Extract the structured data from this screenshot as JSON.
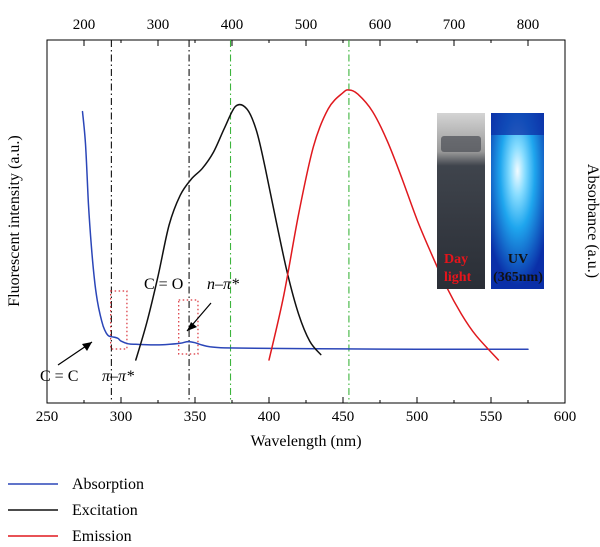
{
  "chart_data": {
    "type": "line",
    "xlabel": "Wavelength (nm)",
    "ylabel": "Fluorescent intensity (a.u.)",
    "y2label": "Absorbance (a.u.)",
    "bottom_axis": {
      "label": "Wavelength (nm)",
      "xlim": [
        250,
        600
      ],
      "ticks": [
        "250",
        "300",
        "350",
        "400",
        "450",
        "500",
        "550",
        "600"
      ]
    },
    "top_axis": {
      "xlim": [
        150,
        850
      ],
      "ticks": [
        "200",
        "300",
        "400",
        "500",
        "600",
        "700",
        "800"
      ]
    },
    "ylim": [
      0,
      1
    ],
    "grid": false,
    "legend_position": "bottom-left",
    "series": [
      {
        "name": "Absorption",
        "color": "#2b46b8",
        "axis": "bottom",
        "x": [
          274,
          276,
          278,
          280,
          282,
          284,
          286,
          288,
          290,
          292,
          295,
          298,
          300,
          305,
          310,
          320,
          330,
          340,
          345,
          350,
          355,
          360,
          370,
          400,
          450,
          500,
          550,
          575
        ],
        "y": [
          0.92,
          0.8,
          0.58,
          0.42,
          0.3,
          0.22,
          0.165,
          0.125,
          0.1,
          0.088,
          0.085,
          0.08,
          0.07,
          0.06,
          0.058,
          0.056,
          0.057,
          0.062,
          0.068,
          0.064,
          0.055,
          0.049,
          0.045,
          0.043,
          0.041,
          0.04,
          0.04,
          0.04
        ]
      },
      {
        "name": "Excitation",
        "color": "#111111",
        "axis": "top",
        "x": [
          270,
          285,
          300,
          315,
          330,
          345,
          360,
          375,
          390,
          405,
          420,
          433,
          445,
          460,
          475,
          490,
          505,
          520
        ],
        "y": [
          0.0,
          0.14,
          0.31,
          0.5,
          0.61,
          0.67,
          0.71,
          0.77,
          0.86,
          0.94,
          0.93,
          0.85,
          0.71,
          0.51,
          0.32,
          0.17,
          0.07,
          0.02
        ]
      },
      {
        "name": "Emission",
        "color": "#e0191e",
        "axis": "bottom",
        "x": [
          400,
          410,
          420,
          430,
          440,
          450,
          454,
          460,
          470,
          480,
          490,
          500,
          510,
          520,
          530,
          540,
          555
        ],
        "y": [
          0.0,
          0.24,
          0.54,
          0.79,
          0.93,
          0.99,
          1.0,
          0.985,
          0.92,
          0.81,
          0.67,
          0.52,
          0.39,
          0.27,
          0.17,
          0.09,
          0.0
        ]
      }
    ],
    "reference_lines": [
      {
        "axis": "top",
        "x": 237,
        "color": "#111111",
        "style": "dash-dot"
      },
      {
        "axis": "top",
        "x": 342,
        "color": "#111111",
        "style": "dash-dot"
      },
      {
        "axis": "bottom",
        "x": 374,
        "color": "#3db53d",
        "style": "dash-dot"
      },
      {
        "axis": "bottom",
        "x": 454,
        "color": "#3db53d",
        "style": "dash-dot"
      }
    ],
    "highlight_boxes": [
      {
        "x": [
          293,
          304
        ]
      },
      {
        "x": [
          339,
          352
        ]
      }
    ],
    "annotations": [
      {
        "text": "C = C",
        "label": "cc"
      },
      {
        "text": "π–π*",
        "label": "pi-pi"
      },
      {
        "text": "C = O",
        "label": "co"
      },
      {
        "text": "n–π*",
        "label": "n-pi"
      }
    ],
    "inset": {
      "day_label_line1": "Day",
      "day_label_line2": "light",
      "uv_label_line1": "UV",
      "uv_label_line2": "(365nm)"
    }
  }
}
